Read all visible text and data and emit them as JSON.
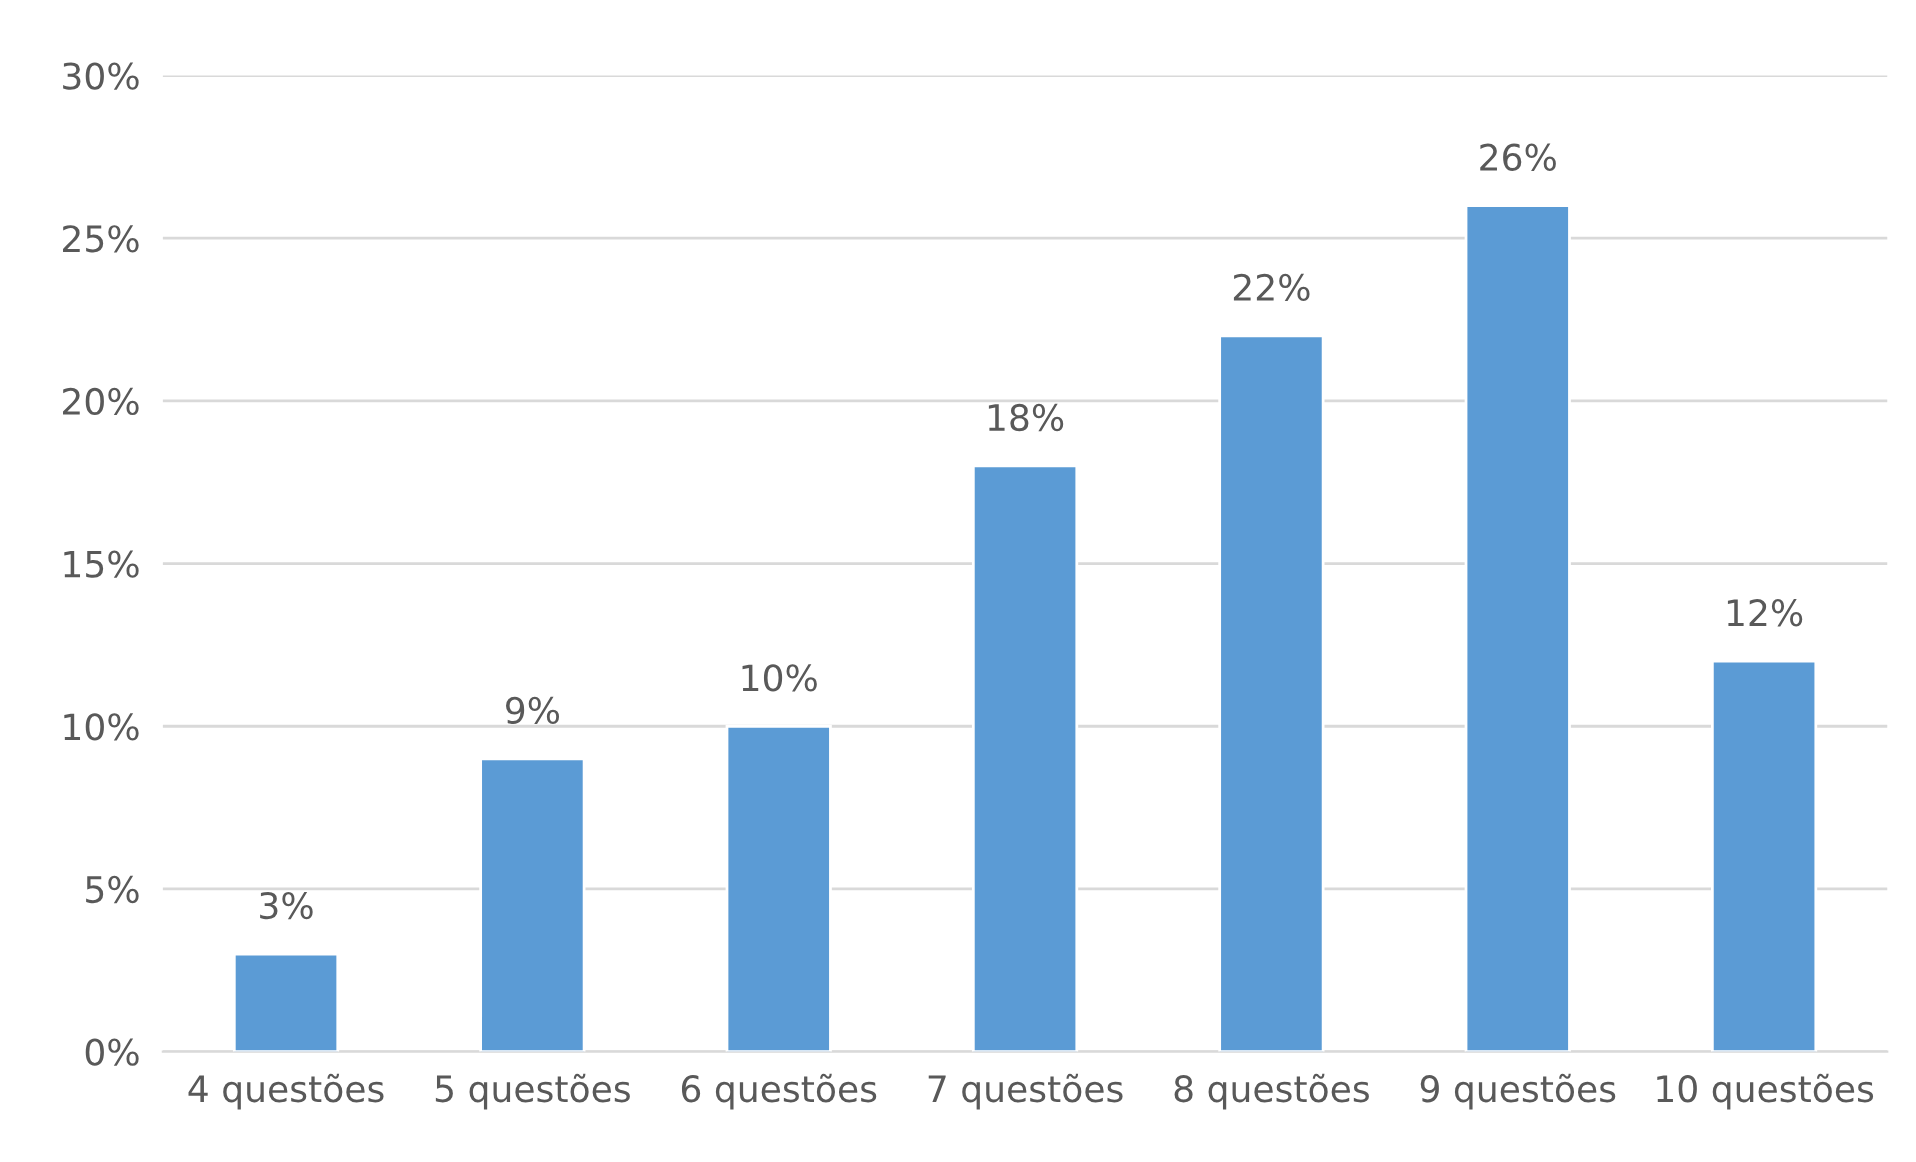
{
  "chart_data": {
    "type": "bar",
    "categories": [
      "4 questões",
      "5 questões",
      "6 questões",
      "7 questões",
      "8 questões",
      "9 questões",
      "10 questões"
    ],
    "values": [
      3,
      9,
      10,
      18,
      22,
      26,
      12
    ],
    "value_labels": [
      "3%",
      "9%",
      "10%",
      "18%",
      "22%",
      "26%",
      "12%"
    ],
    "color": "#5b9bd5",
    "ylim": [
      0,
      30
    ],
    "yticks": [
      {
        "value": 0,
        "label": "0%"
      },
      {
        "value": 5,
        "label": "5%"
      },
      {
        "value": 10,
        "label": "10%"
      },
      {
        "value": 15,
        "label": "15%"
      },
      {
        "value": 20,
        "label": "20%"
      },
      {
        "value": 25,
        "label": "25%"
      },
      {
        "value": 30,
        "label": "30%"
      }
    ],
    "grid": "y",
    "legend": false
  }
}
